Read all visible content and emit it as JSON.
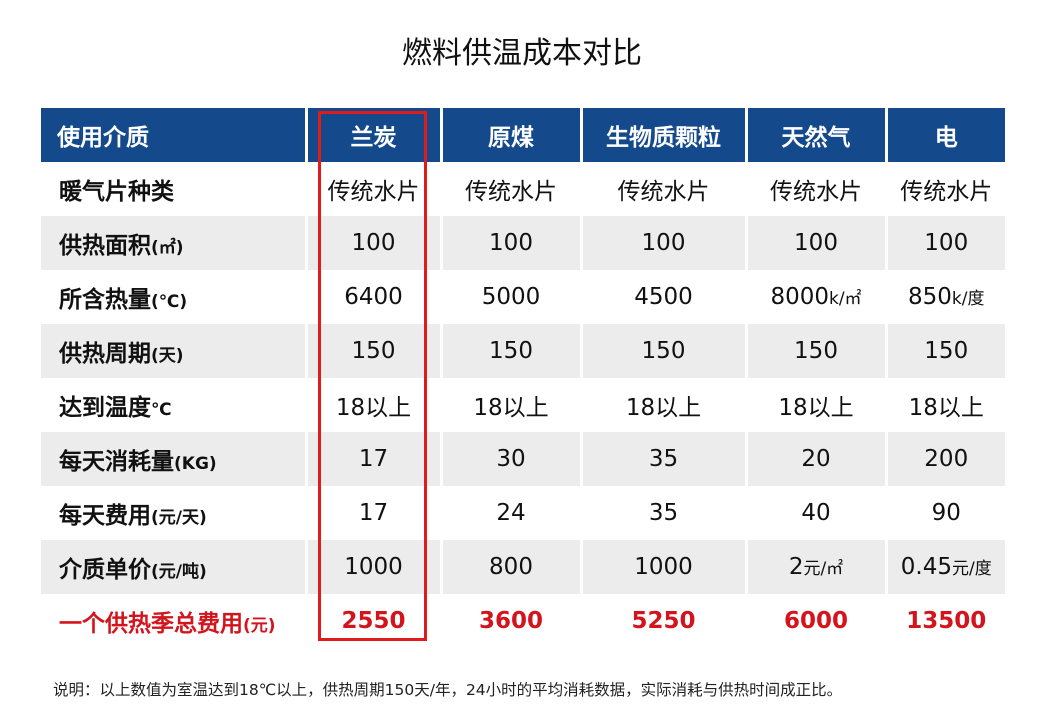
{
  "title": "燃料供温成本对比",
  "table": {
    "header": [
      "使用介质",
      "兰炭",
      "原煤",
      "生物质颗粒",
      "天然气",
      "电"
    ],
    "rows": [
      {
        "label": "暖气片种类",
        "unit": "",
        "cells": [
          "传统水片",
          "传统水片",
          "传统水片",
          "传统水片",
          "传统水片"
        ]
      },
      {
        "label": "供热面积",
        "unit": "(㎡)",
        "cells": [
          "100",
          "100",
          "100",
          "100",
          "100"
        ]
      },
      {
        "label": "所含热量",
        "unit": "(℃)",
        "cells": [
          "6400",
          "5000",
          "4500",
          "8000",
          "850"
        ],
        "cell_units": [
          "",
          "",
          "",
          "k/㎡",
          "k/度"
        ]
      },
      {
        "label": "供热周期",
        "unit": "(天)",
        "cells": [
          "150",
          "150",
          "150",
          "150",
          "150"
        ]
      },
      {
        "label": "达到温度",
        "unit": "℃",
        "cells": [
          "18以上",
          "18以上",
          "18以上",
          "18以上",
          "18以上"
        ]
      },
      {
        "label": "每天消耗量",
        "unit": "(KG)",
        "cells": [
          "17",
          "30",
          "35",
          "20",
          "200"
        ]
      },
      {
        "label": "每天费用",
        "unit": "(元/天)",
        "cells": [
          "17",
          "24",
          "35",
          "40",
          "90"
        ]
      },
      {
        "label": "介质单价",
        "unit": "(元/吨)",
        "cells": [
          "1000",
          "800",
          "1000",
          "2",
          "0.45"
        ],
        "cell_units": [
          "",
          "",
          "",
          "元/㎡",
          "元/度"
        ]
      }
    ],
    "total": {
      "label": "一个供热季总费用",
      "unit": "(元)",
      "cells": [
        "2550",
        "3600",
        "5250",
        "6000",
        "13500"
      ]
    }
  },
  "note": "说明：以上数值为室温达到18℃以上，供热周期150天/年，24小时的平均消耗数据，实际消耗与供热时间成正比。",
  "colors": {
    "header_bg": "#14498c",
    "highlight": "#e11b1b",
    "total_text": "#d4141c",
    "stripe": "#ececec"
  }
}
